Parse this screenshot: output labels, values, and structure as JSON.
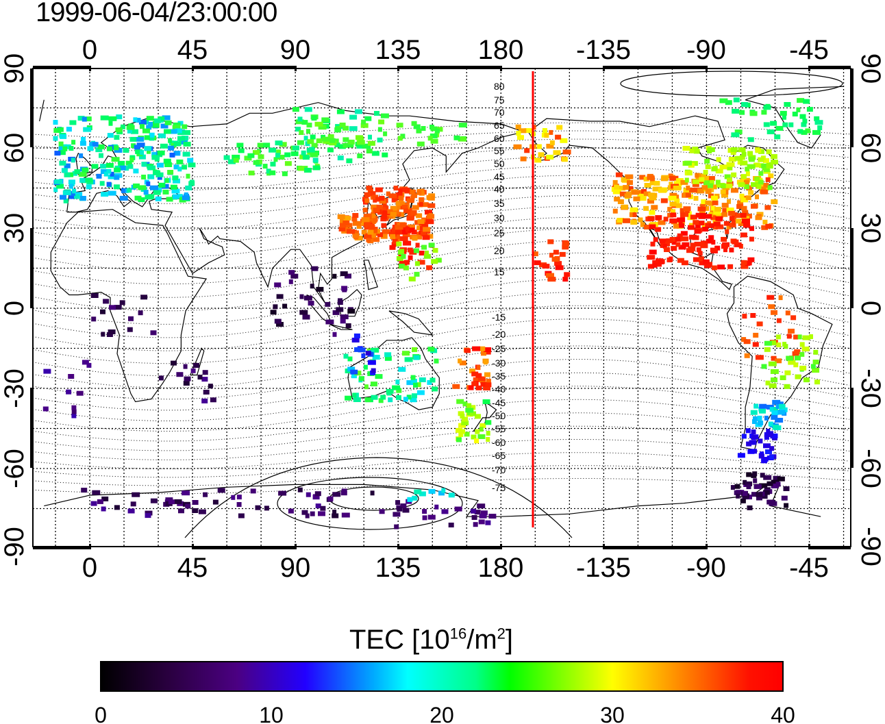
{
  "title": "1999-06-04/23:00:00",
  "lon_labels": [
    "0",
    "45",
    "90",
    "135",
    "180",
    "-135",
    "-90",
    "-45"
  ],
  "lat_labels": [
    "90",
    "60",
    "30",
    "0",
    "-30",
    "-60",
    "-90"
  ],
  "contour_labels": {
    "north": [
      "80",
      "75",
      "70",
      "65",
      "60",
      "55",
      "50",
      "45",
      "40",
      "35",
      "30",
      "25",
      "20",
      "15"
    ],
    "south": [
      "-15",
      "-20",
      "-25",
      "-30",
      "-35",
      "-40",
      "-45",
      "-50",
      "-55",
      "-60",
      "-65",
      "-70",
      "-75"
    ]
  },
  "colorbar": {
    "label_prefix": "TEC  [10",
    "label_sup1": "16",
    "label_mid": "/m",
    "label_sup2": "2",
    "label_suffix": "]",
    "ticks": [
      "0",
      "10",
      "20",
      "30",
      "40"
    ],
    "colors": [
      "#000000",
      "#4b0082",
      "#0000ff",
      "#00ffff",
      "#00ff00",
      "#ffff00",
      "#ff0000"
    ]
  },
  "terminator_color": "#ff0000"
}
